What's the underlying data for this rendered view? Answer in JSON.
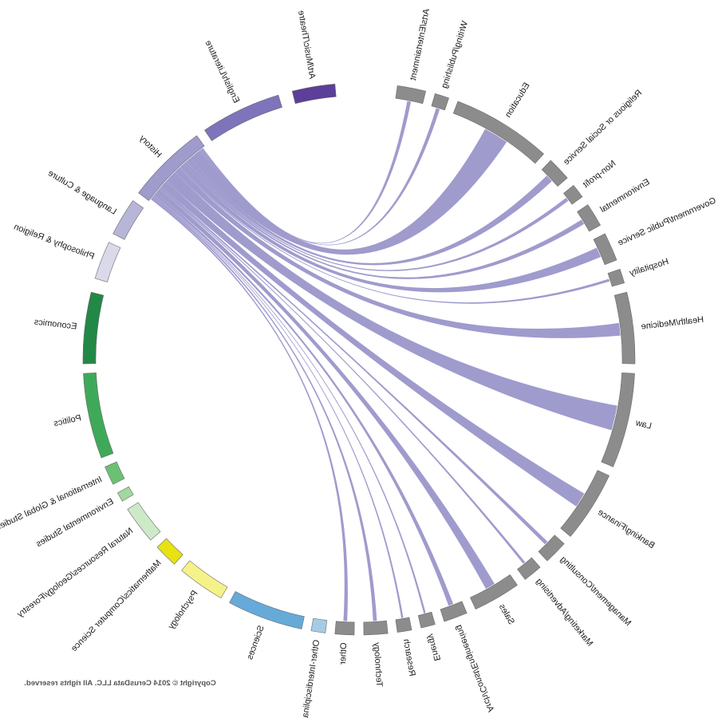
{
  "mirrored": true,
  "source_major": "History",
  "copyright": "Copyright © 2014 CerusData LLC.  All rights reserved.",
  "chart_data": {
    "type": "chord",
    "title": "",
    "majors": [
      {
        "name": "Art/Music/Theatre",
        "color": "#5b3f98"
      },
      {
        "name": "English/Literature",
        "color": "#7d74bb"
      },
      {
        "name": "History",
        "color": "#9f9bcd"
      },
      {
        "name": "Language & Culture",
        "color": "#b7b6d9"
      },
      {
        "name": "Philosophy & Religion",
        "color": "#d9d9ea"
      },
      {
        "name": "Economics",
        "color": "#228846"
      },
      {
        "name": "Politics",
        "color": "#3fa95a"
      },
      {
        "name": "International & Global Studies",
        "color": "#6cc074"
      },
      {
        "name": "Environmental Studies",
        "color": "#a2d89c"
      },
      {
        "name": "Natural Resources/Geology/Forestry",
        "color": "#cdeac6"
      },
      {
        "name": "Mathematics/Computer Science",
        "color": "#e8e211"
      },
      {
        "name": "Psychology",
        "color": "#f6f28a"
      },
      {
        "name": "Sciences",
        "color": "#66aad9"
      },
      {
        "name": "Other-Interdisciplinary",
        "color": "#a4cce8"
      }
    ],
    "careers": [
      {
        "name": "Other",
        "color": "#8c8c8c"
      },
      {
        "name": "Technology",
        "color": "#8c8c8c"
      },
      {
        "name": "Research",
        "color": "#8c8c8c"
      },
      {
        "name": "Energy",
        "color": "#8c8c8c"
      },
      {
        "name": "Arch/Const/Engineering",
        "color": "#8c8c8c"
      },
      {
        "name": "Sales",
        "color": "#8c8c8c"
      },
      {
        "name": "Marketing/Advertising",
        "color": "#8c8c8c"
      },
      {
        "name": "Management/Consulting",
        "color": "#8c8c8c"
      },
      {
        "name": "Banking/Finance",
        "color": "#8c8c8c"
      },
      {
        "name": "Law",
        "color": "#8c8c8c"
      },
      {
        "name": "Health/Medicine",
        "color": "#8c8c8c"
      },
      {
        "name": "Hospitality",
        "color": "#8c8c8c"
      },
      {
        "name": "Government/Public Service",
        "color": "#8c8c8c"
      },
      {
        "name": "Environmental",
        "color": "#8c8c8c"
      },
      {
        "name": "Non-profit",
        "color": "#8c8c8c"
      },
      {
        "name": "Religious or Social Service",
        "color": "#8c8c8c"
      },
      {
        "name": "Education",
        "color": "#8c8c8c"
      },
      {
        "name": "Writing/Publishing",
        "color": "#8c8c8c"
      },
      {
        "name": "Arts/Entertainment",
        "color": "#8c8c8c"
      }
    ],
    "flows_from_history": [
      {
        "career": "Education",
        "weight": 10
      },
      {
        "career": "Law",
        "weight": 10
      },
      {
        "career": "Banking/Finance",
        "weight": 6
      },
      {
        "career": "Health/Medicine",
        "weight": 5
      },
      {
        "career": "Government/Public Service",
        "weight": 4
      },
      {
        "career": "Sales",
        "weight": 4
      },
      {
        "career": "Religious or Social Service",
        "weight": 3
      },
      {
        "career": "Arch/Const/Engineering",
        "weight": 2
      },
      {
        "career": "Environmental",
        "weight": 2
      },
      {
        "career": "Writing/Publishing",
        "weight": 1.5
      },
      {
        "career": "Arts/Entertainment",
        "weight": 1.5
      },
      {
        "career": "Other",
        "weight": 1.5
      },
      {
        "career": "Technology",
        "weight": 1.5
      },
      {
        "career": "Management/Consulting",
        "weight": 1.5
      },
      {
        "career": "Non-profit",
        "weight": 1.5
      },
      {
        "career": "Hospitality",
        "weight": 1
      },
      {
        "career": "Marketing/Advertising",
        "weight": 1
      },
      {
        "career": "Energy",
        "weight": 0.8
      },
      {
        "career": "Research",
        "weight": 0.8
      }
    ]
  }
}
